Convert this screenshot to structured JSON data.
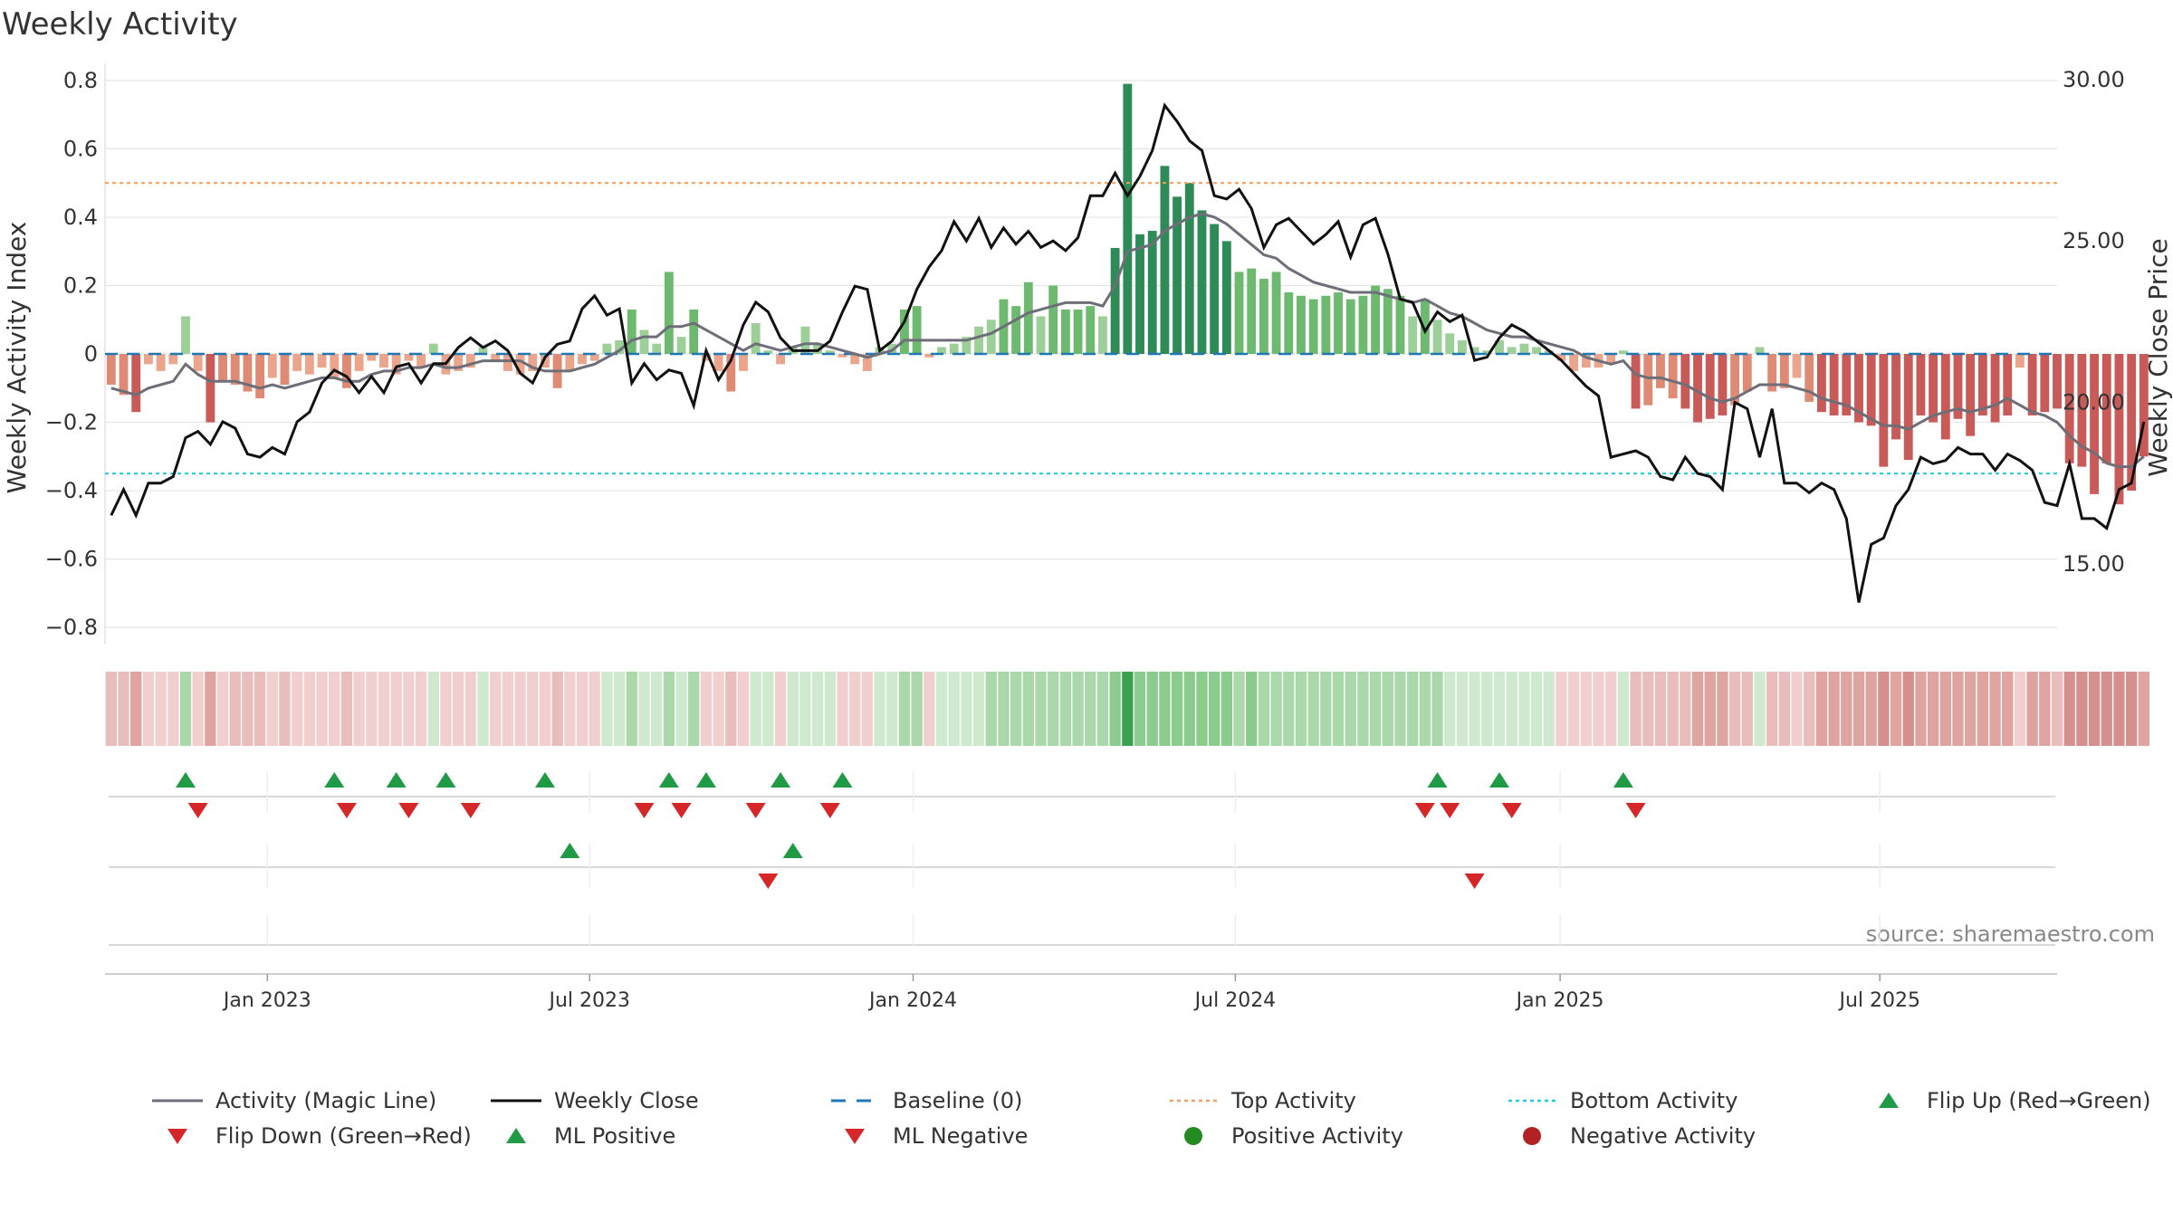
{
  "chart_data": {
    "type": "bar",
    "title": "Weekly Activity",
    "ylabel_left": "Weekly Activity Index",
    "ylabel_right": "Weekly Close Price",
    "ylim_left": [
      -0.85,
      0.85
    ],
    "ylim_right": [
      12.5,
      30.5
    ],
    "yticks_left": [
      "0.8",
      "0.6",
      "0.4",
      "0.2",
      "0",
      "−0.2",
      "−0.4",
      "−0.6",
      "−0.8"
    ],
    "yticks_left_values": [
      0.8,
      0.6,
      0.4,
      0.2,
      0,
      -0.2,
      -0.4,
      -0.6,
      -0.8
    ],
    "yticks_right": [
      "30.00",
      "25.00",
      "20.00",
      "15.00"
    ],
    "yticks_right_values": [
      30,
      25,
      20,
      15
    ],
    "x_start": "2022-10-10",
    "x_range_weeks": [
      -0.5,
      157
    ],
    "xticks": [
      {
        "label": "Jan 2023",
        "week": 12.6
      },
      {
        "label": "Jul 2023",
        "week": 38.6
      },
      {
        "label": "Jan 2024",
        "week": 64.7
      },
      {
        "label": "Jul 2024",
        "week": 90.7
      },
      {
        "label": "Jan 2025",
        "week": 116.9
      },
      {
        "label": "Jul 2025",
        "week": 142.7
      }
    ],
    "activity": [
      -0.09,
      -0.12,
      -0.17,
      -0.03,
      -0.05,
      -0.03,
      0.11,
      -0.05,
      -0.2,
      -0.08,
      -0.09,
      -0.11,
      -0.13,
      -0.07,
      -0.09,
      -0.05,
      -0.06,
      -0.04,
      -0.07,
      -0.1,
      -0.05,
      -0.02,
      -0.04,
      -0.06,
      -0.02,
      -0.04,
      0.03,
      -0.06,
      -0.05,
      -0.04,
      0.02,
      -0.02,
      -0.05,
      -0.06,
      -0.05,
      -0.04,
      -0.1,
      -0.05,
      -0.03,
      -0.02,
      0.03,
      0.04,
      0.13,
      0.07,
      0.03,
      0.24,
      0.05,
      0.13,
      -0.02,
      -0.05,
      -0.11,
      -0.05,
      0.09,
      0.01,
      -0.03,
      0.02,
      0.08,
      0.03,
      0.01,
      -0.01,
      -0.03,
      -0.05,
      0.02,
      0.03,
      0.13,
      0.14,
      -0.01,
      0.02,
      0.03,
      0.05,
      0.08,
      0.1,
      0.16,
      0.14,
      0.21,
      0.11,
      0.2,
      0.13,
      0.13,
      0.14,
      0.11,
      0.31,
      0.79,
      0.35,
      0.36,
      0.55,
      0.46,
      0.5,
      0.42,
      0.38,
      0.33,
      0.24,
      0.25,
      0.22,
      0.24,
      0.18,
      0.17,
      0.16,
      0.17,
      0.18,
      0.16,
      0.17,
      0.2,
      0.19,
      0.17,
      0.11,
      0.16,
      0.1,
      0.06,
      0.04,
      0.02,
      0.01,
      0.04,
      0.02,
      0.03,
      0.02,
      0.01,
      -0.02,
      -0.05,
      -0.04,
      -0.04,
      -0.03,
      0.01,
      -0.16,
      -0.15,
      -0.1,
      -0.13,
      -0.16,
      -0.2,
      -0.19,
      -0.18,
      -0.15,
      -0.11,
      0.02,
      -0.11,
      -0.1,
      -0.07,
      -0.14,
      -0.17,
      -0.18,
      -0.18,
      -0.2,
      -0.21,
      -0.33,
      -0.25,
      -0.31,
      -0.18,
      -0.2,
      -0.25,
      -0.19,
      -0.24,
      -0.18,
      -0.2,
      -0.18,
      -0.04,
      -0.18,
      -0.17,
      -0.16,
      -0.32,
      -0.33,
      -0.41,
      -0.32,
      -0.44,
      -0.4,
      -0.3
    ],
    "magic_line": [
      -0.1,
      -0.11,
      -0.12,
      -0.1,
      -0.09,
      -0.08,
      -0.03,
      -0.06,
      -0.08,
      -0.08,
      -0.08,
      -0.09,
      -0.1,
      -0.09,
      -0.1,
      -0.09,
      -0.08,
      -0.07,
      -0.07,
      -0.08,
      -0.08,
      -0.06,
      -0.05,
      -0.05,
      -0.04,
      -0.04,
      -0.03,
      -0.04,
      -0.04,
      -0.03,
      -0.02,
      -0.02,
      -0.02,
      -0.02,
      -0.04,
      -0.05,
      -0.05,
      -0.05,
      -0.04,
      -0.03,
      -0.01,
      0.01,
      0.04,
      0.05,
      0.05,
      0.08,
      0.08,
      0.09,
      0.07,
      0.05,
      0.03,
      0.01,
      0.03,
      0.02,
      0.01,
      0.02,
      0.03,
      0.03,
      0.02,
      0.01,
      0.0,
      -0.01,
      0.0,
      0.01,
      0.04,
      0.04,
      0.04,
      0.04,
      0.04,
      0.04,
      0.05,
      0.06,
      0.08,
      0.1,
      0.12,
      0.13,
      0.14,
      0.15,
      0.15,
      0.15,
      0.14,
      0.2,
      0.3,
      0.31,
      0.32,
      0.36,
      0.38,
      0.4,
      0.41,
      0.4,
      0.38,
      0.35,
      0.32,
      0.29,
      0.28,
      0.25,
      0.23,
      0.21,
      0.2,
      0.19,
      0.18,
      0.18,
      0.18,
      0.17,
      0.16,
      0.15,
      0.16,
      0.14,
      0.12,
      0.11,
      0.09,
      0.07,
      0.06,
      0.05,
      0.05,
      0.04,
      0.03,
      0.02,
      0.01,
      -0.01,
      -0.02,
      -0.03,
      -0.02,
      -0.06,
      -0.07,
      -0.07,
      -0.08,
      -0.09,
      -0.11,
      -0.13,
      -0.14,
      -0.13,
      -0.11,
      -0.09,
      -0.09,
      -0.09,
      -0.1,
      -0.11,
      -0.13,
      -0.14,
      -0.15,
      -0.17,
      -0.19,
      -0.21,
      -0.21,
      -0.22,
      -0.2,
      -0.18,
      -0.17,
      -0.16,
      -0.17,
      -0.16,
      -0.15,
      -0.13,
      -0.15,
      -0.17,
      -0.18,
      -0.2,
      -0.24,
      -0.27,
      -0.29,
      -0.32,
      -0.33,
      -0.33,
      -0.3
    ],
    "weekly_close": [
      16.5,
      17.3,
      16.5,
      17.5,
      17.5,
      17.7,
      18.9,
      19.1,
      18.7,
      19.4,
      19.2,
      18.4,
      18.3,
      18.6,
      18.4,
      19.4,
      19.7,
      20.6,
      21.0,
      20.8,
      20.3,
      20.8,
      20.3,
      21.1,
      21.2,
      20.6,
      21.2,
      21.2,
      21.7,
      22.0,
      21.7,
      21.9,
      21.6,
      20.9,
      20.6,
      21.4,
      21.8,
      21.9,
      22.9,
      23.3,
      22.7,
      22.9,
      20.6,
      21.2,
      20.7,
      21.0,
      20.9,
      19.9,
      21.6,
      20.7,
      21.3,
      22.4,
      23.1,
      22.8,
      22.0,
      21.6,
      21.6,
      21.6,
      21.9,
      22.8,
      23.6,
      23.5,
      21.6,
      21.9,
      22.5,
      23.5,
      24.2,
      24.7,
      25.6,
      25.0,
      25.7,
      24.8,
      25.4,
      24.9,
      25.3,
      24.8,
      25.0,
      24.7,
      25.1,
      26.4,
      26.4,
      27.1,
      26.4,
      27.0,
      27.8,
      29.2,
      28.7,
      28.1,
      27.8,
      26.4,
      26.3,
      26.6,
      26.0,
      24.8,
      25.5,
      25.7,
      25.3,
      24.9,
      25.2,
      25.6,
      24.5,
      25.5,
      25.7,
      24.6,
      23.2,
      23.1,
      22.2,
      22.8,
      22.5,
      22.7,
      21.3,
      21.4,
      22.0,
      22.4,
      22.2,
      21.9,
      21.6,
      21.3,
      20.9,
      20.5,
      20.2,
      18.3,
      18.4,
      18.5,
      18.3,
      17.7,
      17.6,
      18.3,
      17.8,
      17.7,
      17.3,
      20.0,
      19.8,
      18.3,
      19.8,
      17.5,
      17.5,
      17.2,
      17.5,
      17.3,
      16.4,
      13.8,
      15.6,
      15.8,
      16.8,
      17.3,
      18.3,
      18.1,
      18.2,
      18.6,
      18.4,
      18.4,
      17.9,
      18.4,
      18.2,
      17.9,
      16.9,
      16.8,
      18.1,
      16.4,
      16.4,
      16.1,
      17.3,
      17.5,
      19.4
    ],
    "top_activity": 0.5,
    "bottom_activity": -0.35,
    "baseline": 0,
    "flip_up_weeks": [
      6,
      18,
      23,
      27,
      35,
      45,
      48,
      54,
      59,
      107,
      112,
      122
    ],
    "flip_down_weeks": [
      7,
      19,
      24,
      29,
      43,
      46,
      52,
      58,
      106,
      108,
      113,
      123
    ],
    "ml_positive_weeks": [
      37,
      55
    ],
    "ml_negative_weeks": [
      53,
      110
    ],
    "legend": [
      {
        "label": "Activity (Magic Line)",
        "kind": "line",
        "color": "#6e6e78"
      },
      {
        "label": "Weekly Close",
        "kind": "line",
        "color": "#111111"
      },
      {
        "label": "Baseline (0)",
        "kind": "dash",
        "color": "#1f77b4"
      },
      {
        "label": "Top Activity",
        "kind": "dot",
        "color": "#f0a060"
      },
      {
        "label": "Bottom Activity",
        "kind": "dot",
        "color": "#22c8d8"
      },
      {
        "label": "Flip Up (Red→Green)",
        "kind": "tri-up",
        "color": "#1f9a45"
      },
      {
        "label": "Flip Down (Green→Red)",
        "kind": "tri-down",
        "color": "#d62728"
      },
      {
        "label": "ML Positive",
        "kind": "tri-up",
        "color": "#1f9a45"
      },
      {
        "label": "ML Negative",
        "kind": "tri-down",
        "color": "#d62728"
      },
      {
        "label": "Positive Activity",
        "kind": "circle",
        "color": "#228b22"
      },
      {
        "label": "Negative Activity",
        "kind": "circle",
        "color": "#b22222"
      }
    ],
    "source": "source: sharemaestro.com"
  },
  "colors": {
    "pos_light": "#9dcf98",
    "pos_mid": "#6cb96f",
    "pos_dark": "#2e8b57",
    "neg_light": "#eba58c",
    "neg_mid": "#de8a74",
    "neg_dark": "#c85a58",
    "top_line": "#f0a060",
    "bottom_line": "#22c8d8",
    "baseline": "#1f77b4",
    "magic_line": "#6e6e78",
    "close_line": "#111111",
    "flip_up": "#1f9a45",
    "flip_down": "#d62728"
  }
}
